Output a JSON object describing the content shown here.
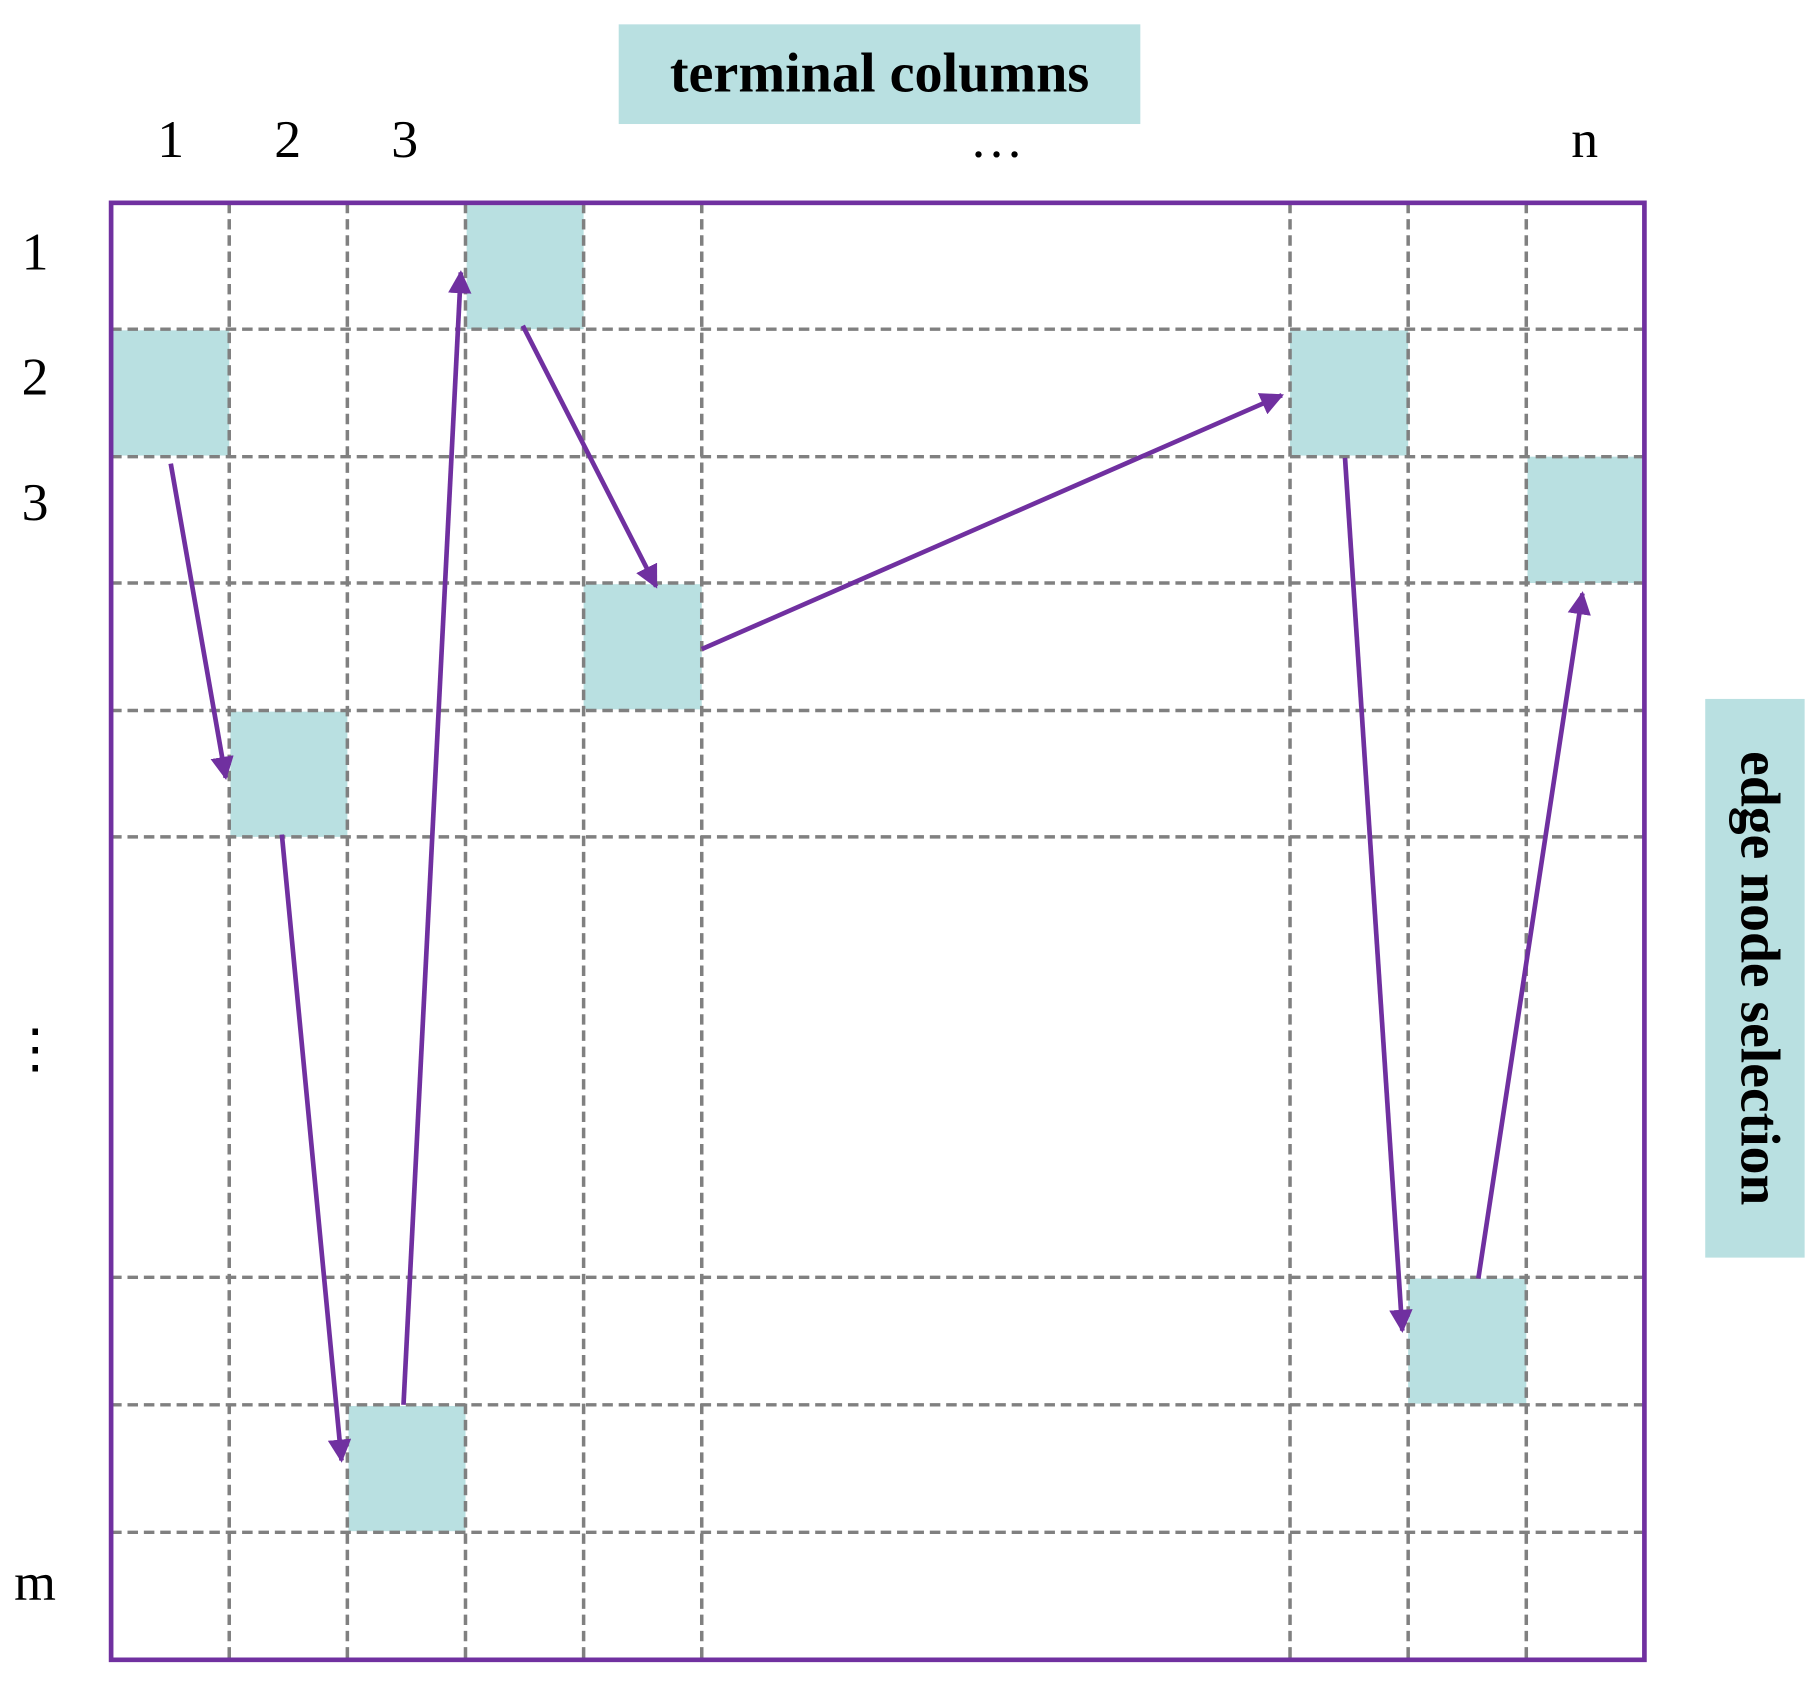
{
  "header": {
    "title": "terminal columns"
  },
  "side_label": "edge node selection",
  "columns": [
    "1",
    "2",
    "3",
    "…",
    "n"
  ],
  "rows": [
    "1",
    "2",
    "3",
    "⋮",
    "m"
  ]
}
